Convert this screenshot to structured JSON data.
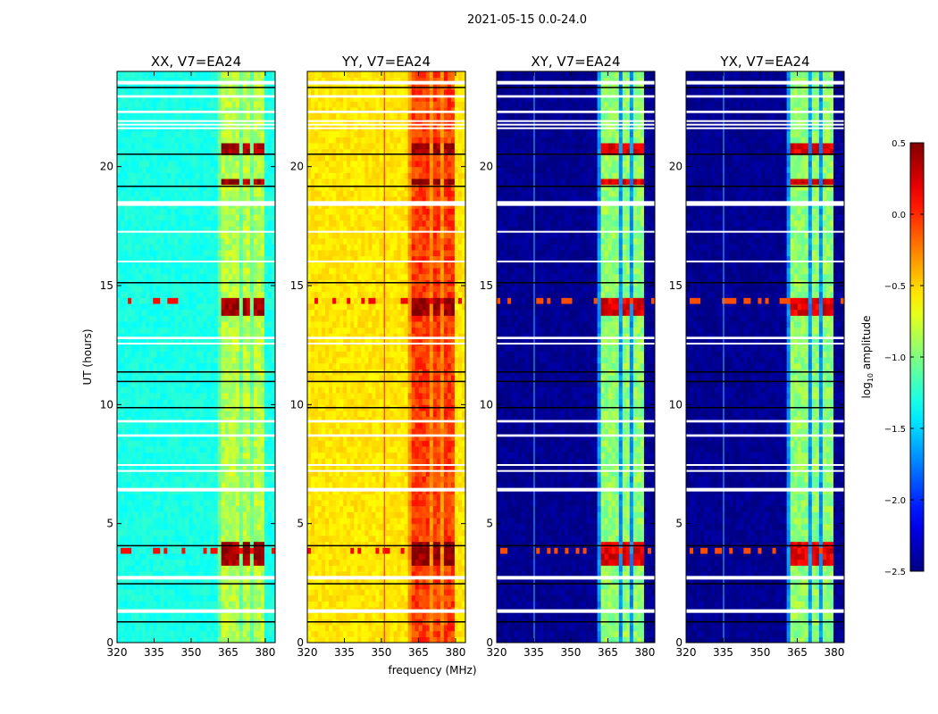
{
  "chart_data": {
    "type": "heatmap",
    "title": "2021-05-15 0.0-24.0",
    "xlabel": "frequency (MHz)",
    "ylabel": "UT (hours)",
    "xlim": [
      320,
      384
    ],
    "ylim": [
      0,
      24
    ],
    "xticks": [
      320,
      335,
      350,
      365,
      380
    ],
    "yticks": [
      0,
      5,
      10,
      15,
      20
    ],
    "colorbar": {
      "label": "log10 amplitude",
      "label_main": "log",
      "label_sub": "10",
      "label_rest": " amplitude",
      "range": [
        -2.5,
        0.5
      ],
      "ticks": [
        0.5,
        0.0,
        -0.5,
        -1.0,
        -1.5,
        -2.0,
        -2.5
      ],
      "tick_labels": [
        "0.5",
        "0.0",
        "−0.5",
        "−1.0",
        "−1.5",
        "−2.0",
        "−2.5"
      ],
      "colormap": "jet"
    },
    "panels": [
      {
        "title": "XX, V7=EA24",
        "base": -1.3,
        "band": -0.85,
        "hot": 0.4,
        "rfi_col": null
      },
      {
        "title": "YY, V7=EA24",
        "base": -0.55,
        "band": -0.05,
        "hot": 0.45,
        "rfi_col": 351
      },
      {
        "title": "XY, V7=EA24",
        "base": -2.45,
        "band": -0.95,
        "hot": 0.2,
        "rfi_col": 335
      },
      {
        "title": "YX, V7=EA24",
        "base": -2.45,
        "band": -0.95,
        "hot": 0.2,
        "rfi_col": 335
      }
    ],
    "band_channels_mhz": [
      [
        362,
        366
      ],
      [
        367,
        370
      ],
      [
        371,
        374
      ],
      [
        375,
        379
      ]
    ],
    "hot_hours": [
      [
        13.9,
        14.5
      ],
      [
        3.4,
        4.1
      ],
      [
        20.6,
        20.8
      ],
      [
        19.4,
        19.5
      ]
    ],
    "flagged_hours": [
      [
        23.45,
        23.6
      ],
      [
        22.9,
        23.0
      ],
      [
        22.25,
        22.35
      ],
      [
        21.9,
        21.95
      ],
      [
        21.75,
        21.8
      ],
      [
        21.6,
        21.65
      ],
      [
        18.35,
        18.55
      ],
      [
        17.25,
        17.3
      ],
      [
        16.0,
        16.05
      ],
      [
        12.75,
        12.85
      ],
      [
        12.55,
        12.6
      ],
      [
        9.25,
        9.35
      ],
      [
        8.65,
        8.75
      ],
      [
        7.45,
        7.5
      ],
      [
        7.2,
        7.25
      ],
      [
        6.35,
        6.5
      ],
      [
        2.65,
        2.8
      ],
      [
        1.25,
        1.4
      ]
    ],
    "dark_lines_hours": [
      23.35,
      20.55,
      19.2,
      15.15,
      11.4,
      11.0,
      9.9,
      4.1,
      2.5,
      0.9
    ]
  }
}
